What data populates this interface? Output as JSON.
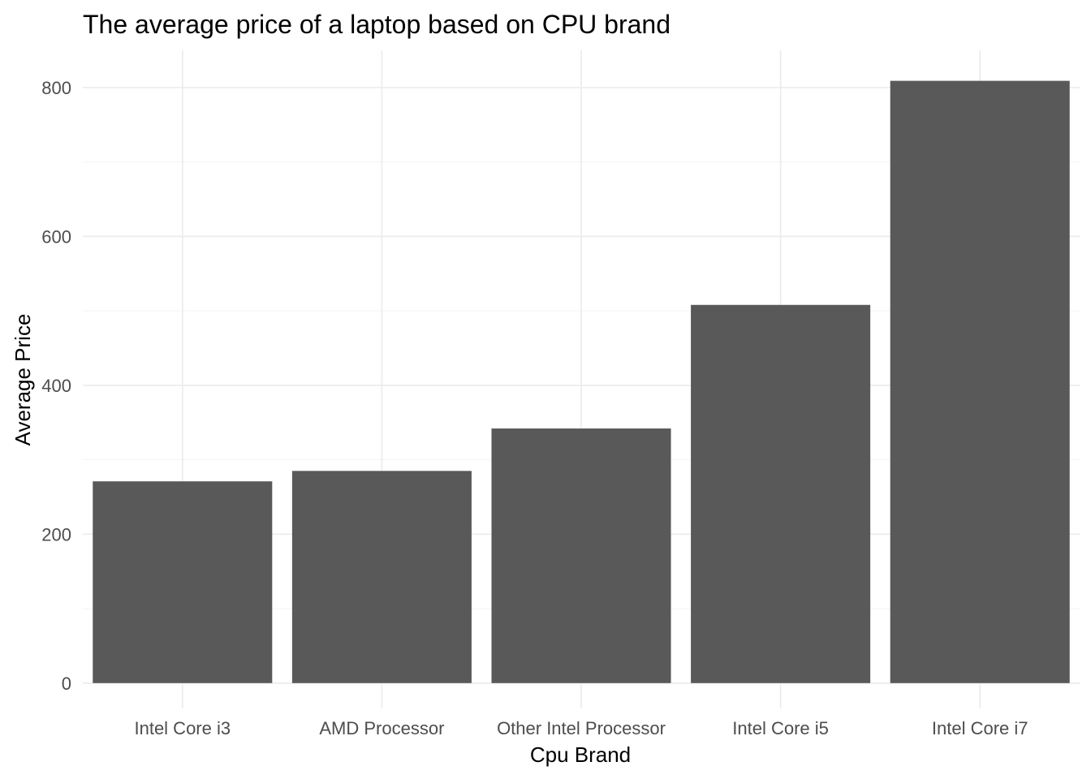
{
  "chart_data": {
    "type": "bar",
    "title": "The average price of a laptop based on CPU brand",
    "xlabel": "Cpu Brand",
    "ylabel": "Average Price",
    "categories": [
      "Intel Core i3",
      "AMD Processor",
      "Other Intel Processor",
      "Intel Core i5",
      "Intel Core i7"
    ],
    "values": [
      271,
      285,
      342,
      508,
      809
    ],
    "ylim": [
      -34,
      850
    ],
    "yticks": [
      0,
      200,
      400,
      600,
      800
    ],
    "bar_color": "#595959",
    "grid": true,
    "legend": "none"
  }
}
